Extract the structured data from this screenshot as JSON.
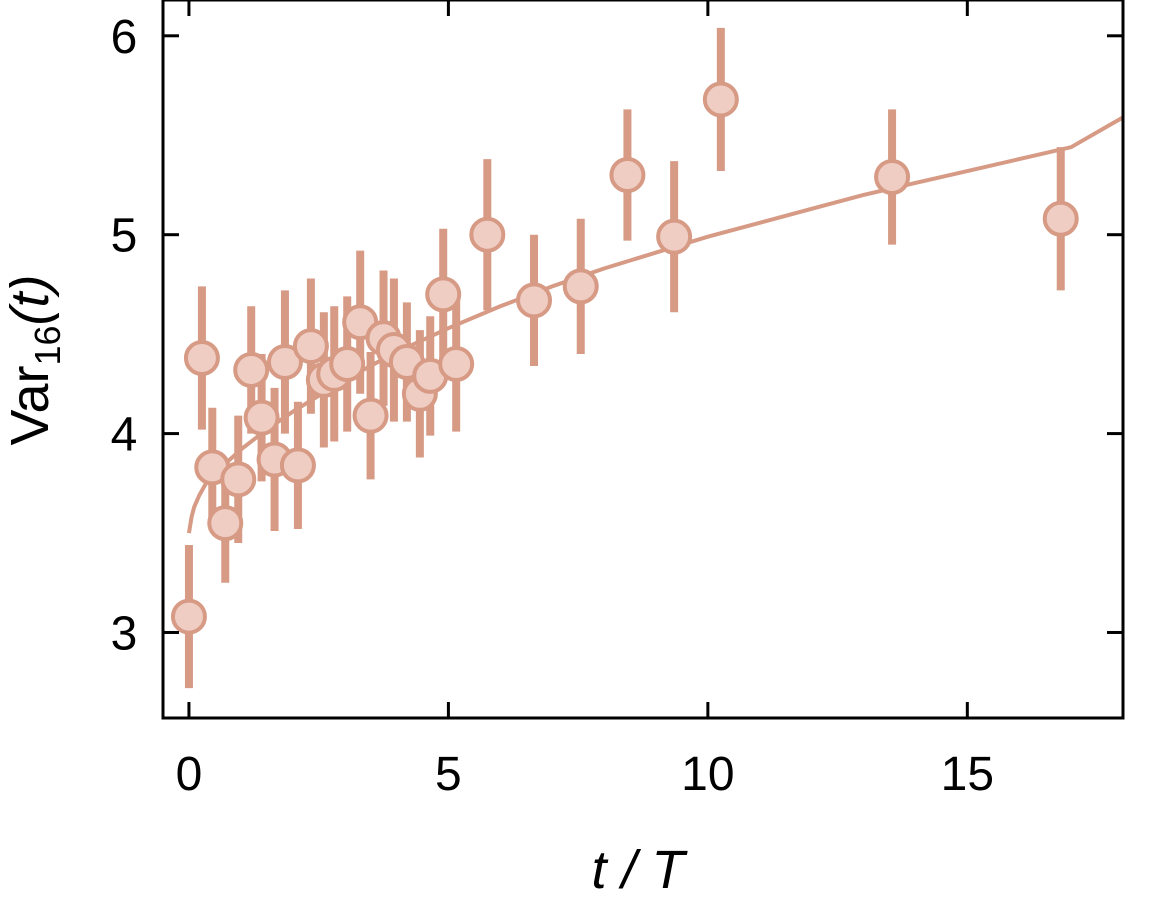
{
  "colors": {
    "series_line": "#d69a85",
    "marker_fill": "#efcdc3",
    "marker_stroke": "#d69a85",
    "axis": "#000000"
  },
  "chart_data": {
    "type": "scatter",
    "title": "",
    "xlabel": "t / T",
    "ylabel": "Var16(t)",
    "ylabel_parts": {
      "main": "Var",
      "subscript": "16",
      "suffix": "(t)"
    },
    "xlim": [
      -0.5,
      18
    ],
    "ylim": [
      2.57,
      6.18
    ],
    "xticks": [
      0,
      5,
      10,
      15
    ],
    "yticks": [
      3,
      4,
      5,
      6
    ],
    "xtick_labels": [
      "0",
      "5",
      "10",
      "15"
    ],
    "ytick_labels": [
      "3",
      "4",
      "5",
      "6"
    ],
    "grid": false,
    "legend": "none",
    "series": [
      {
        "kind": "points_with_error_bars",
        "x": [
          0.0,
          0.25,
          0.45,
          0.7,
          0.95,
          1.2,
          1.4,
          1.65,
          1.85,
          2.1,
          2.35,
          2.6,
          2.8,
          3.05,
          3.3,
          3.5,
          3.75,
          3.95,
          4.2,
          4.45,
          4.65,
          4.9,
          5.15,
          5.75,
          6.65,
          7.55,
          8.45,
          9.35,
          10.25,
          13.55,
          16.8
        ],
        "y": [
          3.08,
          4.38,
          3.83,
          3.55,
          3.77,
          4.32,
          4.08,
          3.87,
          4.36,
          3.84,
          4.44,
          4.27,
          4.3,
          4.35,
          4.56,
          4.09,
          4.48,
          4.42,
          4.36,
          4.2,
          4.29,
          4.7,
          4.35,
          5.0,
          4.67,
          4.74,
          5.3,
          4.99,
          5.68,
          5.29,
          5.08
        ],
        "yerr": [
          0.36,
          0.36,
          0.3,
          0.3,
          0.32,
          0.32,
          0.32,
          0.36,
          0.36,
          0.32,
          0.34,
          0.34,
          0.34,
          0.34,
          0.36,
          0.32,
          0.34,
          0.36,
          0.3,
          0.32,
          0.3,
          0.33,
          0.34,
          0.38,
          0.33,
          0.34,
          0.33,
          0.38,
          0.36,
          0.34,
          0.36
        ]
      },
      {
        "kind": "fit_curve",
        "x": [
          0.0,
          0.05,
          0.1,
          0.2,
          0.35,
          0.5,
          0.75,
          1.0,
          1.5,
          2.0,
          2.5,
          3.0,
          4.0,
          5.0,
          6.0,
          7.0,
          8.0,
          9.0,
          10.0,
          11.0,
          12.0,
          13.0,
          14.0,
          15.0,
          16.0,
          17.0,
          18.0
        ],
        "y": [
          3.5,
          3.58,
          3.63,
          3.69,
          3.76,
          3.8,
          3.86,
          3.92,
          4.02,
          4.11,
          4.19,
          4.27,
          4.41,
          4.53,
          4.64,
          4.74,
          4.83,
          4.91,
          4.99,
          5.06,
          5.13,
          5.2,
          5.26,
          5.32,
          5.38,
          5.44,
          5.59
        ]
      }
    ]
  }
}
